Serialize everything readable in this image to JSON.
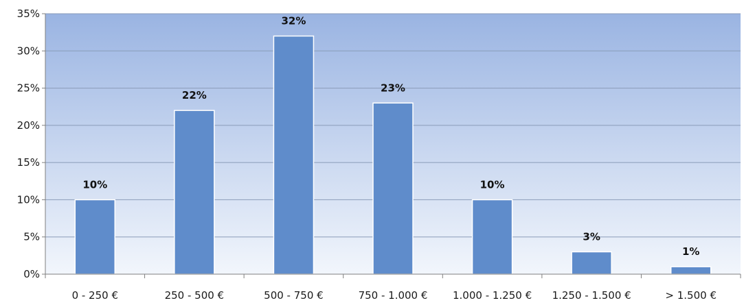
{
  "chart_data": {
    "type": "bar",
    "categories": [
      "0 - 250 €",
      "250 - 500 €",
      "500 - 750 €",
      "750 - 1.000 €",
      "1.000 - 1.250 €",
      "1.250 - 1.500 €",
      "> 1.500 €"
    ],
    "values": [
      10,
      22,
      32,
      23,
      10,
      3,
      1
    ],
    "value_labels": [
      "10%",
      "22%",
      "32%",
      "23%",
      "10%",
      "3%",
      "1%"
    ],
    "y_ticks": [
      0,
      5,
      10,
      15,
      20,
      25,
      30,
      35
    ],
    "y_tick_labels": [
      "0%",
      "5%",
      "10%",
      "15%",
      "20%",
      "25%",
      "30%",
      "35%"
    ],
    "ylim": [
      0,
      35
    ],
    "grid": true,
    "legend": "none",
    "colors": {
      "bar": "#5f8ccb",
      "bar_edge": "#ffffff",
      "plot_bg_top": "#9ab4e2",
      "plot_bg_bottom": "#f2f6fc",
      "gridline": "#8a9bb8"
    }
  }
}
